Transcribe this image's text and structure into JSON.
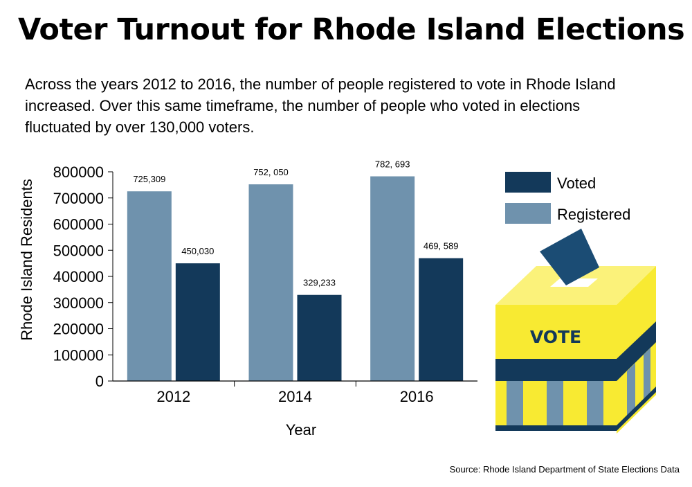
{
  "title": "Voter Turnout for Rhode Island Elections",
  "subtitle": "Across the years 2012 to 2016, the number of people registered to vote in Rhode Island increased. Over this same timeframe, the number of people who voted in elections fluctuated by over 130,000 voters.",
  "source": "Source: Rhode Island Department of State Elections Data",
  "ballot_box_label": "VOTE",
  "colors": {
    "registered": "#6f92ad",
    "voted": "#13395a",
    "box_yellow": "#f8ea32",
    "box_yellow_light": "#fbf27a",
    "box_stripe": "#6f92ad",
    "box_band": "#13395a"
  },
  "chart_data": {
    "type": "bar",
    "title": "Voter Turnout for Rhode Island Elections",
    "xlabel": "Year",
    "ylabel": "Rhode Island Residents",
    "categories": [
      "2012",
      "2014",
      "2016"
    ],
    "ylim": [
      0,
      800000
    ],
    "yticks": [
      0,
      100000,
      200000,
      300000,
      400000,
      500000,
      600000,
      700000,
      800000
    ],
    "legend_position": "top-right",
    "series": [
      {
        "name": "Registered",
        "color": "#6f92ad",
        "values": [
          725309,
          752050,
          782693
        ],
        "labels": [
          "725,309",
          "752, 050",
          "782, 693"
        ]
      },
      {
        "name": "Voted",
        "color": "#13395a",
        "values": [
          450030,
          329233,
          469589
        ],
        "labels": [
          "450,030",
          "329,233",
          "469, 589"
        ]
      }
    ],
    "legend": [
      "Voted",
      "Registered"
    ]
  }
}
